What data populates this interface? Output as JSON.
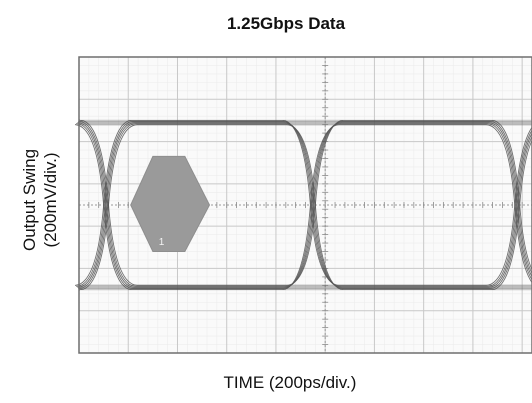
{
  "chart_data": {
    "type": "line",
    "title": "1.25Gbps Data",
    "xlabel": "TIME (200ps/div.)",
    "ylabel": [
      "Output Swing",
      "(200mV/div.)"
    ],
    "x_divisions": 10,
    "y_divisions": 7,
    "x_range_div": [
      0,
      9.2
    ],
    "y_range_div": [
      -3.5,
      3.5
    ],
    "grid": true,
    "eye": {
      "high_level_div": 1.95,
      "low_level_div": -1.95,
      "crossings_div": [
        0.55,
        4.75,
        8.9
      ],
      "trace_count": 5
    },
    "mask": {
      "label": "1",
      "vertices_div": [
        [
          1.5,
          1.15
        ],
        [
          2.15,
          1.15
        ],
        [
          2.65,
          0
        ],
        [
          2.15,
          -1.1
        ],
        [
          1.5,
          -1.1
        ],
        [
          1.05,
          0
        ]
      ]
    },
    "colors": {
      "grid": "#c8c8c8",
      "frame": "#6e6e6e",
      "trace": "#555555",
      "mask": "#9a9a9a",
      "background": "#fafafa"
    }
  }
}
